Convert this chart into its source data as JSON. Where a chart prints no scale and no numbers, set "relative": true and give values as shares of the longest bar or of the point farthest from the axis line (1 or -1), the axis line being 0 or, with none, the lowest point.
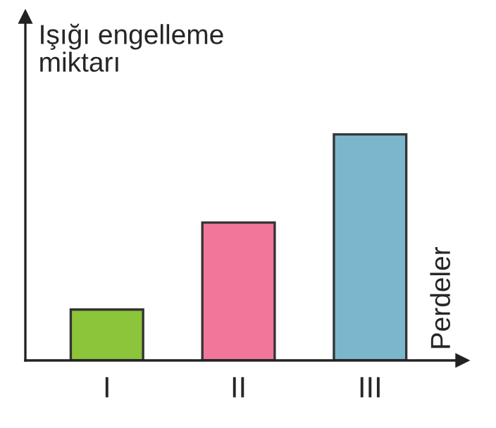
{
  "chart_data": {
    "type": "bar",
    "relative": true,
    "ylabel": "Işığı engelleme\nmiktarı",
    "annotations": [
      "Perdeler"
    ],
    "categories": [
      "I",
      "II",
      "III"
    ],
    "values": [
      0.225,
      0.61,
      1
    ],
    "colors": [
      "#8cc43a",
      "#f07799",
      "#7bb6cc"
    ],
    "grid": false,
    "legend": false
  }
}
